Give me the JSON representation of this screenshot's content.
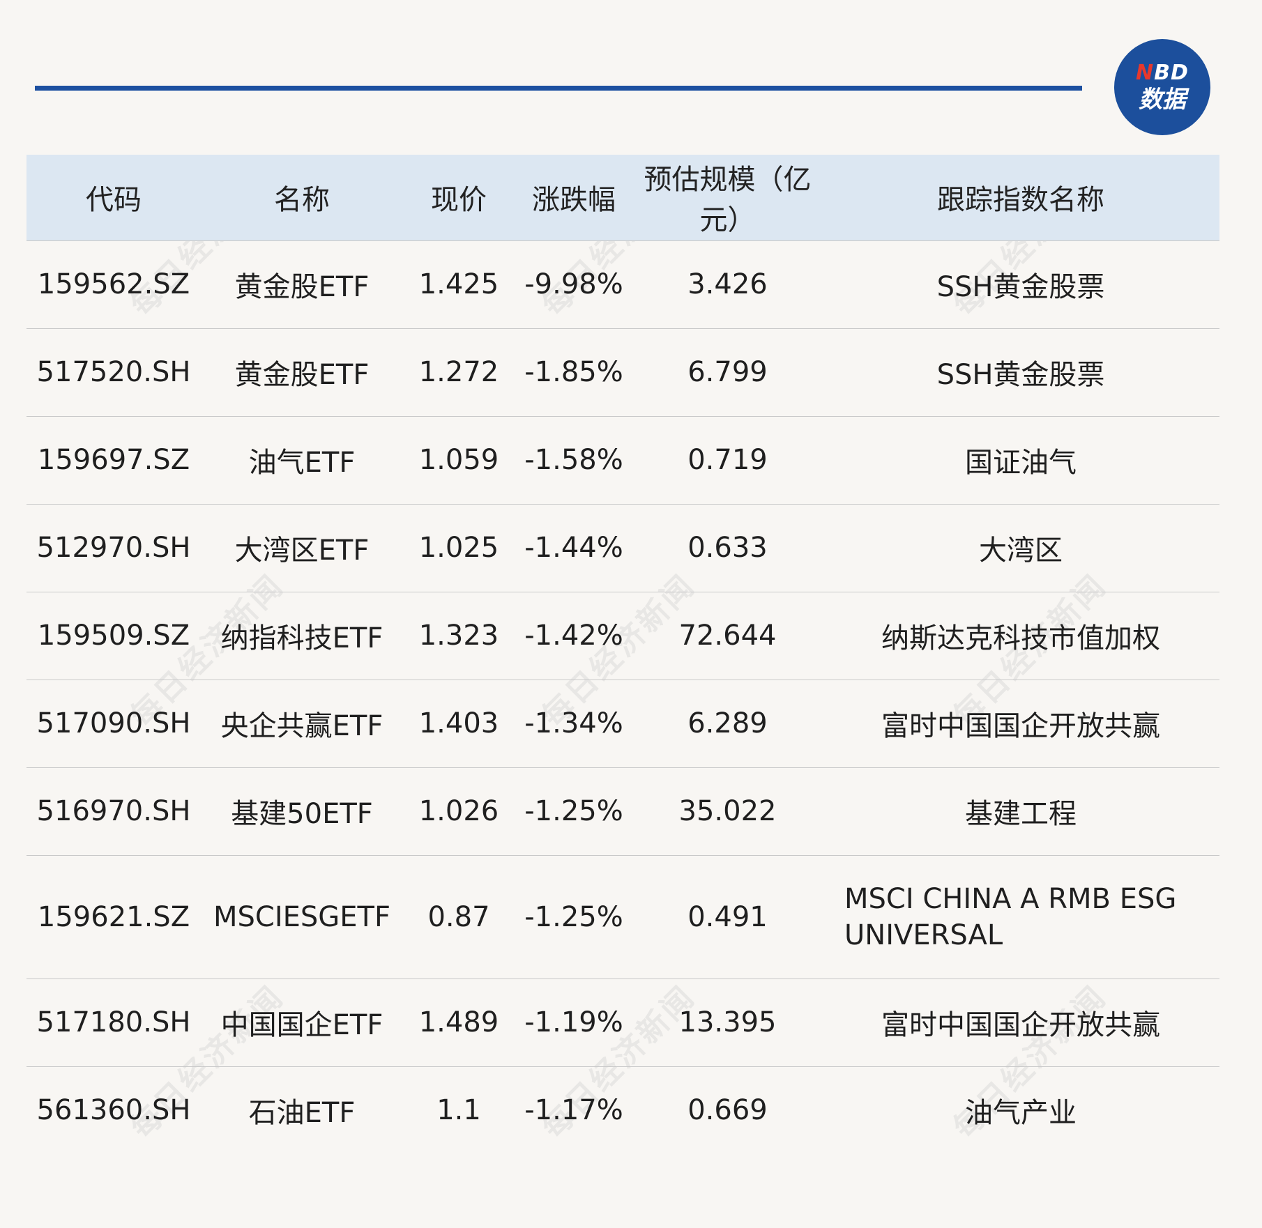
{
  "logo": {
    "top_n": "N",
    "top_rest": "BD",
    "bottom": "数据"
  },
  "watermark_text": "每日经济新闻",
  "colors": {
    "rule": "#1d50a0",
    "header_bg": "#dce7f2",
    "logo_bg": "#1c4f9c",
    "logo_n": "#e8382c"
  },
  "chart_data": {
    "type": "table",
    "columns": [
      "代码",
      "名称",
      "现价",
      "涨跌幅",
      "预估规模（亿元）",
      "跟踪指数名称"
    ],
    "rows": [
      [
        "159562.SZ",
        "黄金股ETF",
        "1.425",
        "-9.98%",
        "3.426",
        "SSH黄金股票"
      ],
      [
        "517520.SH",
        "黄金股ETF",
        "1.272",
        "-1.85%",
        "6.799",
        "SSH黄金股票"
      ],
      [
        "159697.SZ",
        "油气ETF",
        "1.059",
        "-1.58%",
        "0.719",
        "国证油气"
      ],
      [
        "512970.SH",
        "大湾区ETF",
        "1.025",
        "-1.44%",
        "0.633",
        "大湾区"
      ],
      [
        "159509.SZ",
        "纳指科技ETF",
        "1.323",
        "-1.42%",
        "72.644",
        "纳斯达克科技市值加权"
      ],
      [
        "517090.SH",
        "央企共赢ETF",
        "1.403",
        "-1.34%",
        "6.289",
        "富时中国国企开放共赢"
      ],
      [
        "516970.SH",
        "基建50ETF",
        "1.026",
        "-1.25%",
        "35.022",
        "基建工程"
      ],
      [
        "159621.SZ",
        "MSCIESGETF",
        "0.87",
        "-1.25%",
        "0.491",
        "MSCI CHINA A RMB ESG UNIVERSAL"
      ],
      [
        "517180.SH",
        "中国国企ETF",
        "1.489",
        "-1.19%",
        "13.395",
        "富时中国国企开放共赢"
      ],
      [
        "561360.SH",
        "石油ETF",
        "1.1",
        "-1.17%",
        "0.669",
        "油气产业"
      ]
    ]
  }
}
